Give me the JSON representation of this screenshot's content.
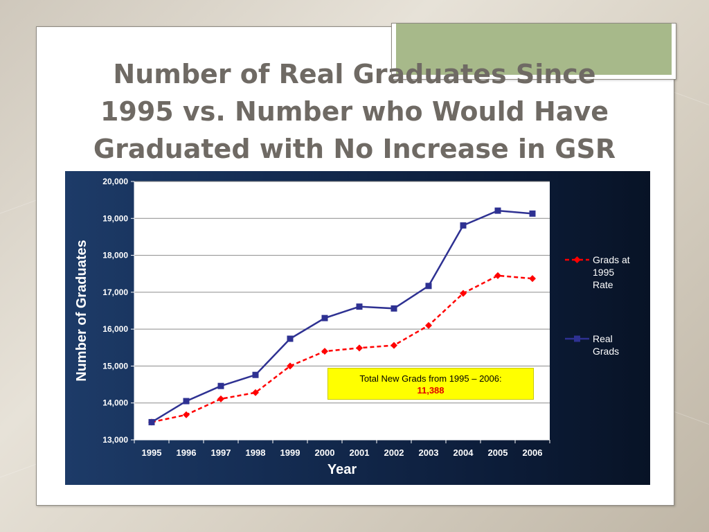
{
  "slide": {
    "title": "Number of Real Graduates Since\n1995 vs. Number who Would Have\nGraduated with No Increase in GSR"
  },
  "colors": {
    "real_grads": "#2e3192",
    "grads_1995_rate": "#ff0000",
    "panel": "#132a4f",
    "plot_bg": "#ffffff",
    "note_bg": "#ffff00",
    "accent_tab": "#a7b98a"
  },
  "chart_data": {
    "type": "line",
    "title": "",
    "xlabel": "Year",
    "ylabel": "Number of Graduates",
    "categories": [
      "1995",
      "1996",
      "1997",
      "1998",
      "1999",
      "2000",
      "2001",
      "2002",
      "2003",
      "2004",
      "2005",
      "2006"
    ],
    "ylim": [
      13000,
      20000
    ],
    "yticks": [
      13000,
      14000,
      15000,
      16000,
      17000,
      18000,
      19000,
      20000
    ],
    "ytick_labels": [
      "13,000",
      "14,000",
      "15,000",
      "16,000",
      "17,000",
      "18,000",
      "19,000",
      "20,000"
    ],
    "grid": true,
    "legend_position": "right",
    "series": [
      {
        "name": "Grads at 1995 Rate",
        "legend_lines": [
          "Grads at",
          "1995",
          "Rate"
        ],
        "style": "dashed",
        "marker": "diamond",
        "color": "#ff0000",
        "values": [
          13480,
          13680,
          14110,
          14280,
          15000,
          15400,
          15490,
          15560,
          16100,
          16970,
          17450,
          17370
        ]
      },
      {
        "name": "Real Grads",
        "legend_lines": [
          "Real",
          "Grads"
        ],
        "style": "solid",
        "marker": "square",
        "color": "#2e3192",
        "values": [
          13480,
          14050,
          14460,
          14760,
          15740,
          16300,
          16610,
          16560,
          17170,
          18810,
          19210,
          19130
        ]
      }
    ],
    "annotation": {
      "text": "Total New Grads from 1995 – 2006:",
      "value": "11,388"
    }
  }
}
